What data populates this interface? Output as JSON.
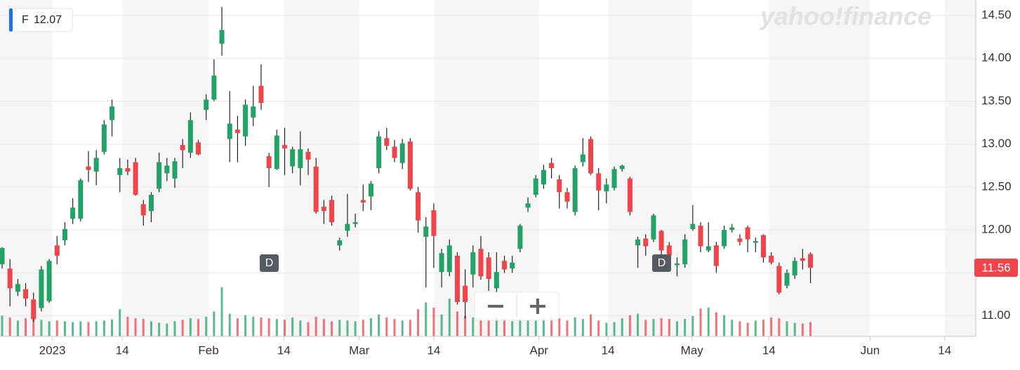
{
  "chart_data": {
    "type": "candlestick",
    "symbol": "F",
    "quote": 12.07,
    "last_price": 11.56,
    "brand": "yahoo!finance",
    "markers": [
      {
        "label": "D"
      },
      {
        "label": "D"
      }
    ],
    "up_color": "#21a366",
    "down_color": "#f0434a",
    "grid": true,
    "categories": [
      null,
      null,
      null,
      null,
      null,
      null,
      null,
      null,
      null,
      null,
      null,
      null,
      null,
      null,
      null,
      null,
      null,
      null,
      null,
      null,
      null,
      null,
      null,
      null,
      null,
      null,
      null,
      null,
      null,
      null,
      null,
      null,
      null,
      null,
      null,
      null,
      null,
      null,
      null,
      null,
      null,
      null,
      null,
      null,
      null,
      null,
      null,
      null,
      null,
      null,
      null,
      null,
      null,
      null,
      null,
      null,
      null,
      null,
      null,
      null,
      null,
      null,
      null,
      null,
      null,
      null,
      null,
      null,
      null,
      null,
      null,
      null,
      null,
      null,
      null,
      null,
      null,
      null,
      null,
      null,
      null,
      null,
      null,
      null,
      null,
      null,
      null,
      null,
      null,
      null,
      null,
      null,
      null,
      null,
      null,
      null,
      null,
      null,
      null,
      null,
      null,
      null,
      null,
      null
    ],
    "open": [
      11.6,
      11.55,
      11.28,
      11.31,
      11.19,
      11.09,
      11.17,
      11.82,
      11.88,
      12.13,
      12.13,
      12.74,
      12.68,
      12.91,
      13.28,
      12.64,
      12.72,
      12.79,
      12.3,
      12.22,
      12.48,
      12.66,
      12.6,
      12.99,
      12.9,
      13.02,
      13.4,
      13.52,
      14.17,
      13.06,
      13.17,
      13.09,
      13.31,
      13.68,
      12.86,
      12.71,
      12.99,
      12.74,
      12.72,
      12.91,
      12.74,
      12.27,
      12.35,
      11.82,
      11.99,
      12.07,
      12.35,
      12.39,
      12.72,
      13.07,
      12.97,
      12.78,
      13.03,
      12.44,
      11.92,
      12.23,
      11.51,
      11.51,
      11.7,
      11.35,
      11.48,
      11.78,
      11.68,
      11.32,
      11.64,
      11.55,
      11.78,
      12.26,
      12.41,
      12.53,
      12.78,
      12.59,
      12.44,
      12.21,
      12.79,
      13.06,
      12.66,
      12.45,
      12.49,
      12.71,
      12.6,
      11.82,
      11.9,
      11.89,
      11.99,
      11.82,
      11.59,
      11.6,
      12.01,
      12.05,
      11.76,
      11.82,
      11.81,
      12.0,
      11.9,
      12.03,
      11.85,
      11.94,
      11.7,
      11.58,
      11.35,
      11.47,
      11.67,
      11.72
    ],
    "high": [
      11.8,
      11.66,
      11.43,
      11.38,
      11.27,
      11.58,
      11.66,
      11.93,
      12.09,
      12.37,
      12.6,
      12.92,
      12.93,
      13.28,
      13.52,
      12.84,
      12.82,
      12.84,
      12.35,
      12.44,
      12.9,
      12.84,
      12.84,
      13.06,
      13.37,
      13.05,
      13.58,
      13.99,
      14.6,
      13.62,
      13.33,
      13.52,
      13.68,
      13.93,
      12.9,
      13.17,
      13.19,
      12.97,
      13.15,
      12.95,
      12.84,
      12.35,
      12.4,
      11.91,
      12.42,
      12.19,
      12.53,
      12.57,
      13.15,
      13.19,
      13.05,
      13.06,
      13.07,
      12.5,
      12.15,
      12.31,
      11.78,
      11.89,
      11.74,
      11.54,
      11.82,
      11.93,
      11.74,
      11.74,
      11.7,
      11.7,
      12.07,
      12.38,
      12.64,
      12.76,
      12.84,
      12.64,
      12.49,
      12.75,
      13.07,
      13.09,
      12.72,
      12.6,
      12.74,
      12.76,
      12.62,
      11.92,
      11.95,
      12.19,
      12.0,
      11.86,
      11.68,
      11.95,
      12.29,
      12.09,
      12.09,
      11.86,
      12.05,
      12.07,
      11.95,
      12.05,
      11.91,
      11.95,
      11.74,
      11.62,
      11.54,
      11.68,
      11.78,
      11.74
    ],
    "low": [
      11.55,
      11.11,
      11.23,
      11.11,
      10.93,
      11.05,
      11.15,
      11.6,
      11.82,
      12.07,
      12.1,
      12.56,
      12.52,
      12.88,
      13.09,
      12.44,
      12.64,
      12.4,
      12.05,
      12.09,
      12.44,
      12.57,
      12.49,
      12.72,
      12.84,
      12.87,
      13.28,
      13.5,
      14.03,
      12.79,
      12.79,
      12.98,
      13.21,
      13.4,
      12.5,
      12.7,
      12.64,
      12.66,
      12.52,
      12.64,
      12.19,
      12.07,
      12.05,
      11.76,
      11.92,
      12.03,
      12.22,
      12.23,
      12.66,
      12.93,
      12.79,
      12.71,
      12.46,
      11.97,
      11.33,
      11.56,
      11.33,
      11.46,
      11.13,
      10.97,
      11.33,
      11.42,
      11.29,
      11.27,
      11.5,
      11.5,
      11.74,
      12.21,
      12.38,
      12.48,
      12.6,
      12.25,
      12.25,
      12.17,
      12.74,
      12.64,
      12.23,
      12.31,
      12.46,
      12.68,
      12.17,
      11.56,
      11.7,
      11.86,
      11.7,
      11.58,
      11.46,
      11.56,
      11.99,
      11.74,
      11.74,
      11.5,
      11.78,
      11.97,
      11.82,
      11.74,
      11.74,
      11.62,
      11.6,
      11.25,
      11.32,
      11.43,
      11.54,
      11.38
    ],
    "close": [
      11.79,
      11.32,
      11.37,
      11.2,
      10.96,
      11.54,
      11.64,
      11.7,
      12.01,
      12.26,
      12.58,
      12.7,
      12.84,
      13.23,
      13.44,
      12.72,
      12.68,
      12.41,
      12.17,
      12.41,
      12.79,
      12.75,
      12.8,
      12.93,
      13.28,
      12.88,
      13.52,
      13.8,
      14.33,
      13.24,
      13.13,
      13.46,
      13.44,
      13.48,
      12.72,
      13.1,
      12.95,
      12.94,
      12.94,
      12.82,
      12.21,
      12.22,
      12.09,
      11.88,
      12.07,
      12.09,
      12.32,
      12.54,
      13.09,
      12.98,
      12.84,
      13.01,
      12.48,
      12.11,
      12.04,
      11.93,
      11.73,
      11.82,
      11.16,
      11.16,
      11.74,
      11.46,
      11.43,
      11.51,
      11.54,
      11.62,
      12.05,
      12.31,
      12.6,
      12.7,
      12.72,
      12.44,
      12.33,
      12.72,
      12.88,
      12.66,
      12.46,
      12.53,
      12.71,
      12.75,
      12.21,
      11.89,
      11.81,
      12.17,
      11.76,
      11.7,
      11.61,
      11.89,
      12.07,
      11.81,
      11.81,
      11.58,
      12.0,
      12.03,
      11.86,
      11.89,
      11.87,
      11.68,
      11.62,
      11.27,
      11.5,
      11.64,
      11.64,
      11.56
    ],
    "volume": [
      55,
      50,
      42,
      48,
      52,
      44,
      40,
      42,
      40,
      38,
      40,
      38,
      40,
      42,
      45,
      72,
      52,
      48,
      46,
      40,
      36,
      34,
      40,
      44,
      48,
      46,
      52,
      66,
      130,
      60,
      48,
      56,
      52,
      50,
      48,
      46,
      44,
      50,
      42,
      38,
      52,
      46,
      40,
      44,
      42,
      40,
      44,
      48,
      58,
      50,
      46,
      42,
      44,
      72,
      90,
      76,
      58,
      100,
      66,
      54,
      50,
      48,
      46,
      50,
      48,
      40,
      46,
      42,
      44,
      50,
      54,
      48,
      42,
      50,
      46,
      58,
      42,
      36,
      38,
      48,
      56,
      60,
      44,
      46,
      48,
      46,
      40,
      46,
      54,
      74,
      76,
      64,
      56,
      44,
      40,
      36,
      42,
      44,
      50,
      48,
      40,
      36,
      34,
      38
    ],
    "xlim": [
      -0.27,
      124.06
    ],
    "xticks": [
      {
        "value": 6.4,
        "label": "2023"
      },
      {
        "value": 15.3,
        "label": "14"
      },
      {
        "value": 26.3,
        "label": "Feb"
      },
      {
        "value": 35.9,
        "label": "14"
      },
      {
        "value": 45.5,
        "label": "Mar"
      },
      {
        "value": 55,
        "label": "14"
      },
      {
        "value": 68.4,
        "label": "Apr"
      },
      {
        "value": 77.2,
        "label": "14"
      },
      {
        "value": 87.9,
        "label": "May"
      },
      {
        "value": 97.7,
        "label": "14"
      },
      {
        "value": 110.6,
        "label": "Jun"
      },
      {
        "value": 120.1,
        "label": "14"
      }
    ],
    "ylim": [
      10.76,
      14.68
    ],
    "yticks": [
      {
        "value": 11,
        "label": "11.00"
      },
      {
        "value": 11.5,
        "label": "11.50"
      },
      {
        "value": 12,
        "label": "12.00"
      },
      {
        "value": 12.5,
        "label": "12.50"
      },
      {
        "value": 13,
        "label": "13.00"
      },
      {
        "value": 13.5,
        "label": "13.50"
      },
      {
        "value": 14,
        "label": "14.00"
      },
      {
        "value": 14.5,
        "label": "14.50"
      }
    ]
  }
}
